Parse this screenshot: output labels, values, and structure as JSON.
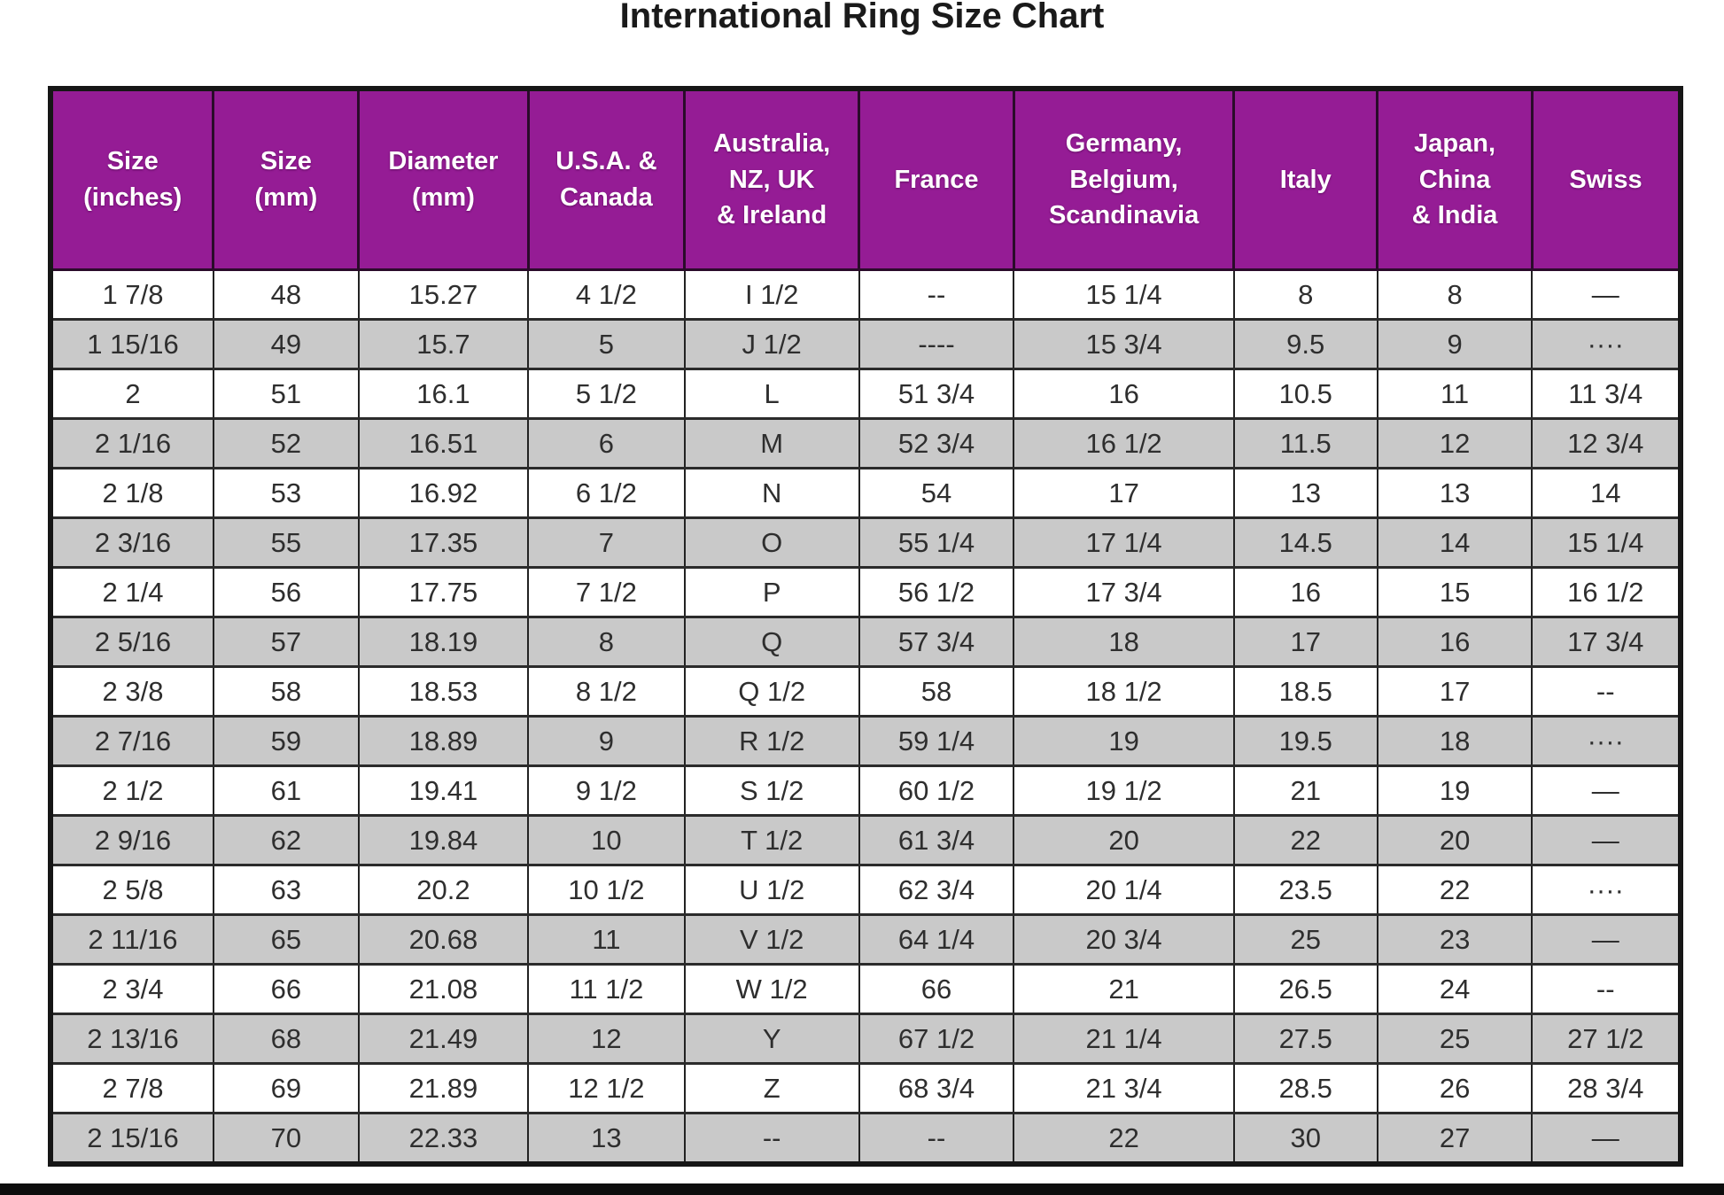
{
  "page": {
    "title": "International Ring Size Chart"
  },
  "colors": {
    "header_bg": "#951c95",
    "header_text": "#ffffff",
    "row_bg": "#ffffff",
    "row_alt_bg": "#c9c9c9",
    "border": "#222222",
    "cell_text": "#2e2e2e",
    "bottom_bar": "#0d0d0d"
  },
  "chart_data": {
    "type": "table",
    "title": "International Ring Size Chart",
    "columns": [
      "Size\n(inches)",
      "Size\n(mm)",
      "Diameter\n(mm)",
      "U.S.A. &\nCanada",
      "Australia,\nNZ, UK\n& Ireland",
      "France",
      "Germany,\nBelgium,\nScandinavia",
      "Italy",
      "Japan,\nChina\n& India",
      "Swiss"
    ],
    "rows": [
      [
        "1 7/8",
        "48",
        "15.27",
        "4 1/2",
        "I 1/2",
        "--",
        "15 1/4",
        "8",
        "8",
        "—"
      ],
      [
        "1 15/16",
        "49",
        "15.7",
        "5",
        "J 1/2",
        "----",
        "15 3/4",
        "9.5",
        "9",
        "····"
      ],
      [
        "2",
        "51",
        "16.1",
        "5 1/2",
        "L",
        "51 3/4",
        "16",
        "10.5",
        "11",
        "11 3/4"
      ],
      [
        "2 1/16",
        "52",
        "16.51",
        "6",
        "M",
        "52 3/4",
        "16 1/2",
        "11.5",
        "12",
        "12 3/4"
      ],
      [
        "2 1/8",
        "53",
        "16.92",
        "6 1/2",
        "N",
        "54",
        "17",
        "13",
        "13",
        "14"
      ],
      [
        "2 3/16",
        "55",
        "17.35",
        "7",
        "O",
        "55 1/4",
        "17 1/4",
        "14.5",
        "14",
        "15 1/4"
      ],
      [
        "2 1/4",
        "56",
        "17.75",
        "7 1/2",
        "P",
        "56 1/2",
        "17 3/4",
        "16",
        "15",
        "16 1/2"
      ],
      [
        "2 5/16",
        "57",
        "18.19",
        "8",
        "Q",
        "57 3/4",
        "18",
        "17",
        "16",
        "17 3/4"
      ],
      [
        "2 3/8",
        "58",
        "18.53",
        "8 1/2",
        "Q 1/2",
        "58",
        "18 1/2",
        "18.5",
        "17",
        "--"
      ],
      [
        "2 7/16",
        "59",
        "18.89",
        "9",
        "R 1/2",
        "59 1/4",
        "19",
        "19.5",
        "18",
        "····"
      ],
      [
        "2 1/2",
        "61",
        "19.41",
        "9 1/2",
        "S 1/2",
        "60 1/2",
        "19 1/2",
        "21",
        "19",
        "—"
      ],
      [
        "2 9/16",
        "62",
        "19.84",
        "10",
        "T 1/2",
        "61 3/4",
        "20",
        "22",
        "20",
        "—"
      ],
      [
        "2 5/8",
        "63",
        "20.2",
        "10 1/2",
        "U 1/2",
        "62 3/4",
        "20 1/4",
        "23.5",
        "22",
        "····"
      ],
      [
        "2 11/16",
        "65",
        "20.68",
        "11",
        "V 1/2",
        "64 1/4",
        "20 3/4",
        "25",
        "23",
        "—"
      ],
      [
        "2 3/4",
        "66",
        "21.08",
        "11 1/2",
        "W 1/2",
        "66",
        "21",
        "26.5",
        "24",
        "--"
      ],
      [
        "2 13/16",
        "68",
        "21.49",
        "12",
        "Y",
        "67 1/2",
        "21 1/4",
        "27.5",
        "25",
        "27 1/2"
      ],
      [
        "2 7/8",
        "69",
        "21.89",
        "12 1/2",
        "Z",
        "68 3/4",
        "21 3/4",
        "28.5",
        "26",
        "28 3/4"
      ],
      [
        "2 15/16",
        "70",
        "22.33",
        "13",
        "--",
        "--",
        "22",
        "30",
        "27",
        "—"
      ]
    ]
  }
}
